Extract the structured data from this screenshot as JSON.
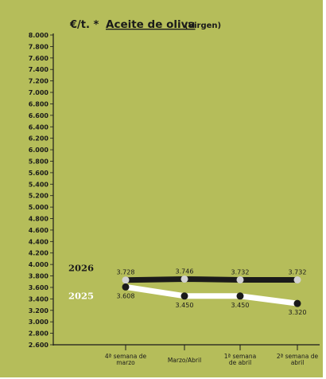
{
  "chart_data": {
    "type": "line",
    "title_unit": "€/t. *",
    "title": "Aceite de oliva",
    "subtitle": "(Virgen)",
    "ylim": [
      2600,
      8000
    ],
    "ytick_labels": [
      "8.000",
      "7.800",
      "7.600",
      "7.400",
      "7.200",
      "7.000",
      "6.800",
      "6.600",
      "6.400",
      "6.200",
      "6.000",
      "5.800",
      "5.600",
      "5.400",
      "5.200",
      "5.000",
      "4.800",
      "4.600",
      "4.400",
      "4.200",
      "4.000",
      "3.800",
      "3.600",
      "3.400",
      "3.200",
      "3.000",
      "2.800",
      "2.600"
    ],
    "categories": [
      [
        "4ª semana de",
        "marzo"
      ],
      [
        "Marzo/Abril"
      ],
      [
        "1ª semana",
        "de abril"
      ],
      [
        "2ª semana de",
        "abril"
      ]
    ],
    "series": [
      {
        "name": "2026",
        "values": [
          3728,
          3746,
          3732,
          3732
        ],
        "labels": [
          "3.728",
          "3.746",
          "3.732",
          "3.732"
        ],
        "line_color": "#1a1a1a",
        "marker_color": "#d2d2d2"
      },
      {
        "name": "2025",
        "values": [
          3608,
          3450,
          3450,
          3320
        ],
        "labels": [
          "3.608",
          "3.450",
          "3.450",
          "3.320"
        ],
        "line_color": "#ffffff",
        "marker_color": "#1a1a1a"
      }
    ],
    "grid": false,
    "background": "#b5bd5a"
  }
}
